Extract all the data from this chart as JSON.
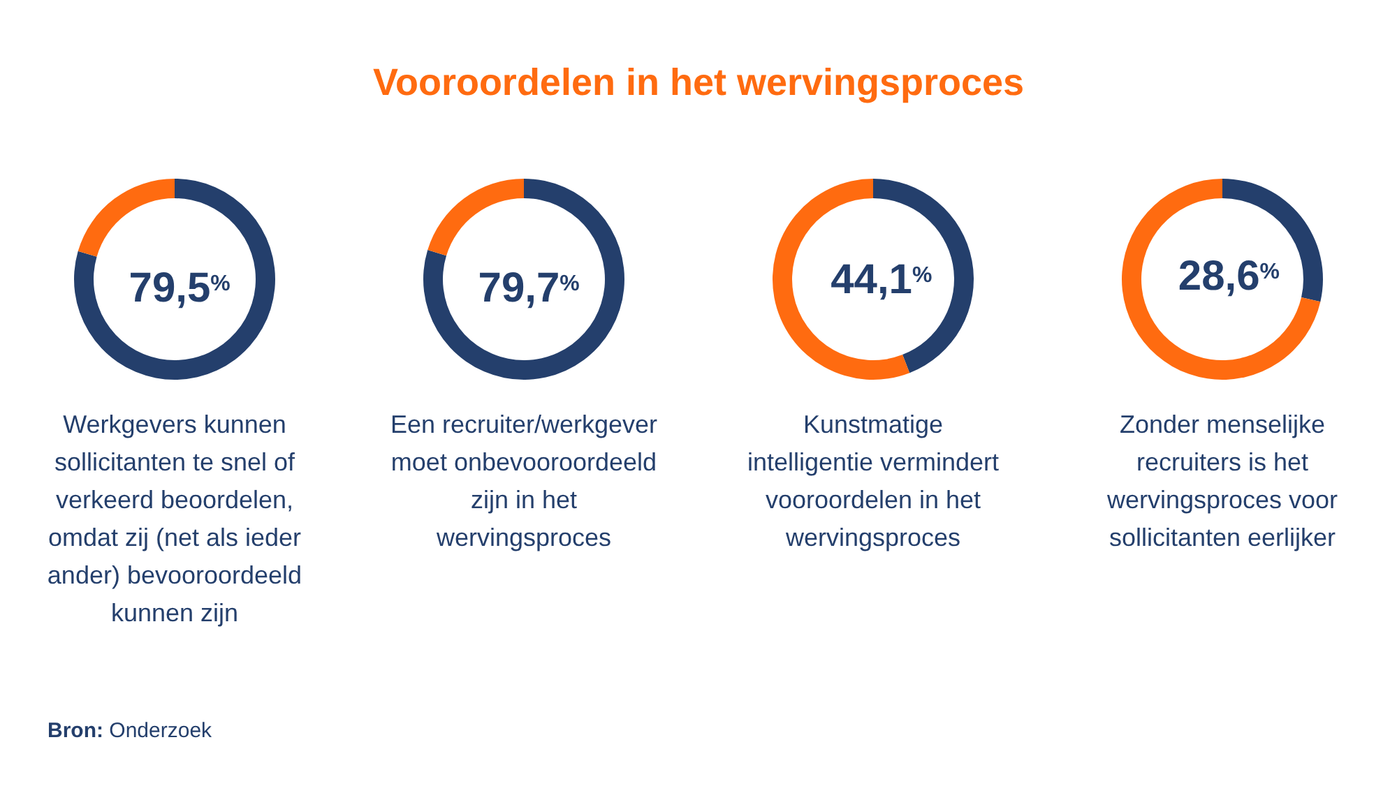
{
  "chart_data": [
    {
      "type": "other",
      "title": "Vooroordelen in het wervingsproces",
      "annotations": [
        "Bron: Onderzoek"
      ]
    },
    {
      "type": "donut",
      "title": "Werkgevers kunnen sollicitanten te snel of verkeerd beoordelen, omdat zij (net als ieder ander) bevooroordeeld kunnen zijn",
      "categories": [
        null,
        null
      ],
      "values": [
        79.5,
        20.5
      ],
      "colors": [
        "#243f6c",
        "#ff6b10"
      ],
      "value_labels": [
        "79,5$^{%}$",
        null
      ]
    },
    {
      "type": "donut",
      "title": "Een recruiter/werkgever moet onbevooroordeeld zijn in het wervingsproces",
      "categories": [
        null,
        null
      ],
      "values": [
        79.7,
        20.3
      ],
      "colors": [
        "#243f6c",
        "#ff6b10"
      ],
      "value_labels": [
        "79,7$^{%}$",
        null
      ]
    },
    {
      "type": "donut",
      "title": "Kunstmatige intelligentie vermindert vooroordelen in het wervingsproces",
      "categories": [
        null,
        null
      ],
      "values": [
        44.1,
        55.9
      ],
      "colors": [
        "#243f6c",
        "#ff6b10"
      ],
      "value_labels": [
        "44,1$^{%}$",
        null
      ]
    },
    {
      "type": "donut",
      "title": "Zonder menselijke recruiters is het wervingsproces voor sollicitanten eerlijker",
      "categories": [
        null,
        null
      ],
      "values": [
        28.6,
        71.4
      ],
      "colors": [
        "#243f6c",
        "#ff6b10"
      ],
      "value_labels": [
        "28,6$^{%}$",
        null
      ]
    }
  ]
}
